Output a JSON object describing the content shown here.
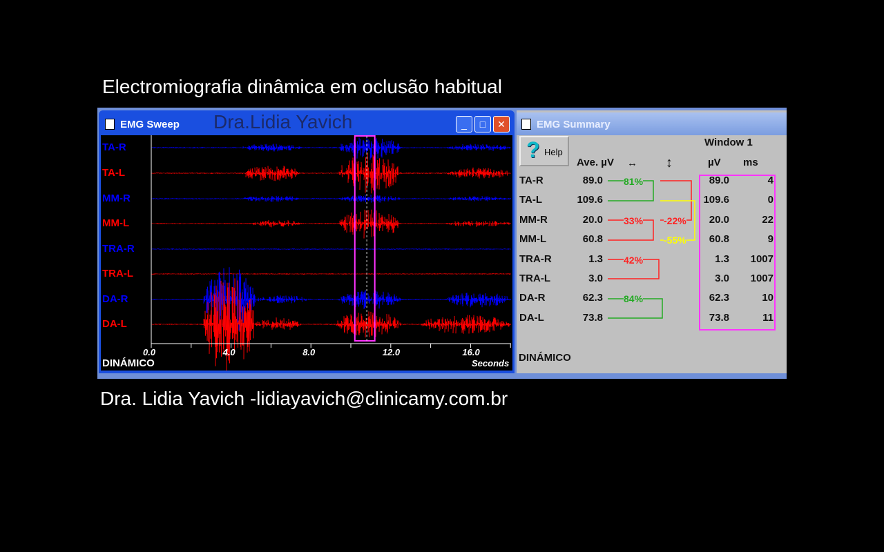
{
  "title": "Electromiografia dinâmica em oclusão habitual",
  "footer": "Dra. Lidia Yavich -lidiayavich@clinicamy.com.br",
  "sweep": {
    "window_title": "EMG Sweep",
    "watermark": "Dra.Lidia Yavich",
    "channels": [
      {
        "name": "TA-R",
        "color": "#0000ff"
      },
      {
        "name": "TA-L",
        "color": "#ff0000"
      },
      {
        "name": "MM-R",
        "color": "#0000ff"
      },
      {
        "name": "MM-L",
        "color": "#ff0000"
      },
      {
        "name": "TRA-R",
        "color": "#0000ff"
      },
      {
        "name": "TRA-L",
        "color": "#ff0000"
      },
      {
        "name": "DA-R",
        "color": "#0000ff"
      },
      {
        "name": "DA-L",
        "color": "#ff0000"
      }
    ],
    "x_ticks": [
      "0.0",
      "4.0",
      "8.0",
      "12.0",
      "16.0"
    ],
    "x_unit": "Seconds",
    "mode": "DINÁMICO",
    "selection_seconds": [
      10.2,
      11.2
    ],
    "cursor_seconds": 10.8
  },
  "summary": {
    "window_title": "EMG Summary",
    "help_label": "Help",
    "col_ave": "Ave. µV",
    "window_label": "Window 1",
    "col_uv": "µV",
    "col_ms": "ms",
    "mode": "DINÁMICO",
    "rows": [
      {
        "name": "TA-R",
        "ave": "89.0",
        "uv": "89.0",
        "ms": "4"
      },
      {
        "name": "TA-L",
        "ave": "109.6",
        "uv": "109.6",
        "ms": "0"
      },
      {
        "name": "MM-R",
        "ave": "20.0",
        "uv": "20.0",
        "ms": "22"
      },
      {
        "name": "MM-L",
        "ave": "60.8",
        "uv": "60.8",
        "ms": "9"
      },
      {
        "name": "TRA-R",
        "ave": "1.3",
        "uv": "1.3",
        "ms": "1007"
      },
      {
        "name": "TRA-L",
        "ave": "3.0",
        "uv": "3.0",
        "ms": "1007"
      },
      {
        "name": "DA-R",
        "ave": "62.3",
        "uv": "62.3",
        "ms": "10"
      },
      {
        "name": "DA-L",
        "ave": "73.8",
        "uv": "73.8",
        "ms": "11"
      }
    ],
    "percents": {
      "ta": "81%",
      "mm": "33%",
      "tra": "42%",
      "da": "84%",
      "cross_r": "22%",
      "cross_l": "55%"
    },
    "colors": {
      "green": "#22aa22",
      "red": "#ff2020",
      "yellow": "#ffff00"
    }
  }
}
